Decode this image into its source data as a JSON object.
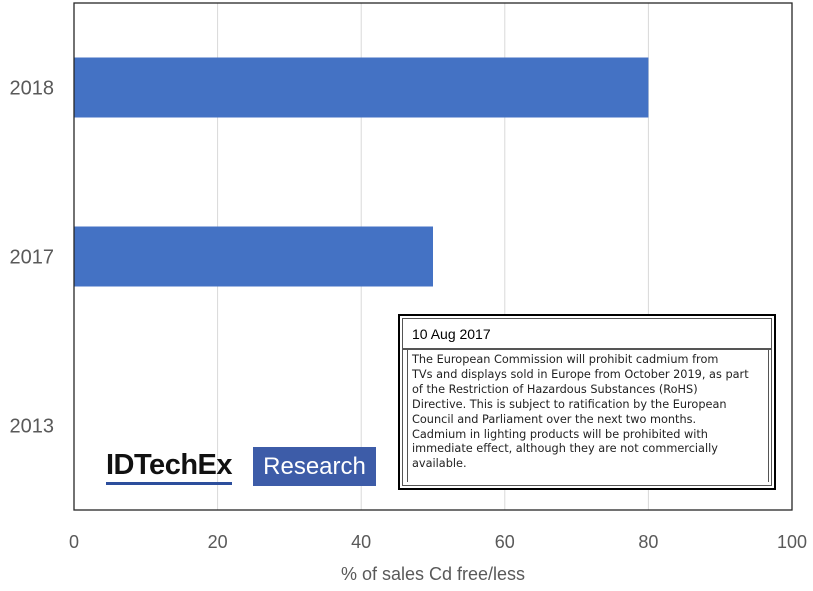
{
  "chart_data": {
    "type": "bar",
    "orientation": "horizontal",
    "categories": [
      "2018",
      "2017",
      "2013"
    ],
    "values": [
      80,
      50,
      0
    ],
    "xlabel": "% of sales Cd free/less",
    "ylabel": "",
    "xlim": [
      0,
      100
    ],
    "xticks": [
      0,
      20,
      40,
      60,
      80,
      100
    ],
    "grid": true,
    "bar_color": "#4472c4"
  },
  "annotation": {
    "date": "10 Aug 2017",
    "lines": [
      "The European Commission will prohibit cadmium from",
      "TVs and displays sold in Europe from October 2019, as part",
      "of the Restriction of Hazardous Substances (RoHS)",
      "Directive. This is subject to ratification by the European",
      "Council and Parliament over the next two months.",
      "Cadmium in lighting products will be prohibited with",
      "immediate effect, although they are not commercially",
      "available."
    ]
  },
  "logo": {
    "name": "IDTechEx",
    "tagline": "Research",
    "accent_color": "#3d5ca8"
  }
}
